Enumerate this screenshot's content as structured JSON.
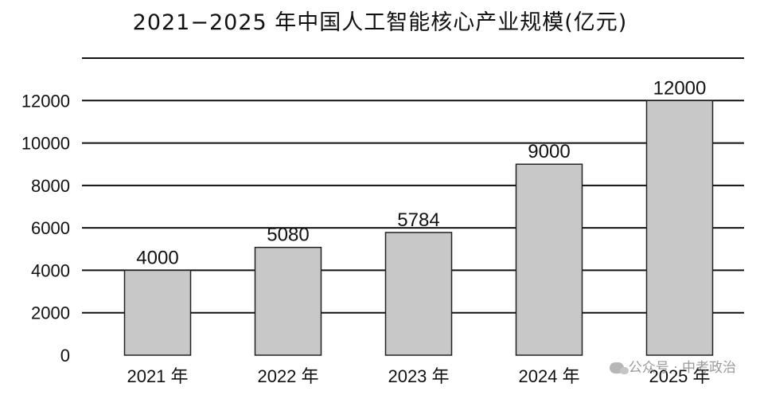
{
  "chart_data": {
    "type": "bar",
    "title": "2021−2025 年中国人工智能核心产业规模(亿元)",
    "categories": [
      "2021 年",
      "2022 年",
      "2023 年",
      "2024 年",
      "2025 年"
    ],
    "values": [
      4000,
      5080,
      5784,
      9000,
      12000
    ],
    "data_labels": [
      "4000",
      "5080",
      "5784",
      "9000",
      "12000"
    ],
    "yticks": [
      0,
      2000,
      4000,
      6000,
      8000,
      10000,
      12000
    ],
    "ylim": [
      0,
      14000
    ],
    "grid": true,
    "bar_color": "#c8c8c8"
  },
  "watermark": "公众号 · 中考政治"
}
